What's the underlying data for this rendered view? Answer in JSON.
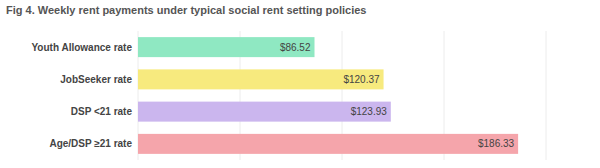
{
  "chart_data": {
    "type": "bar",
    "orientation": "horizontal",
    "title": "Fig 4. Weekly rent payments under typical social rent setting policies",
    "categories": [
      "Youth Allowance rate",
      "JobSeeker rate",
      "DSP <21 rate",
      "Age/DSP ≥21 rate"
    ],
    "values": [
      86.52,
      120.37,
      123.93,
      186.33
    ],
    "value_labels": [
      "$86.52",
      "$120.37",
      "$123.93",
      "$186.33"
    ],
    "colors": [
      "#8fe8c2",
      "#f7ea7e",
      "#cbb6ee",
      "#f5a5ab"
    ],
    "xlim": [
      0,
      200
    ],
    "xticks": [
      0,
      50,
      100,
      150,
      200
    ],
    "grid": true,
    "data_labels": true,
    "tick_labels": false
  }
}
